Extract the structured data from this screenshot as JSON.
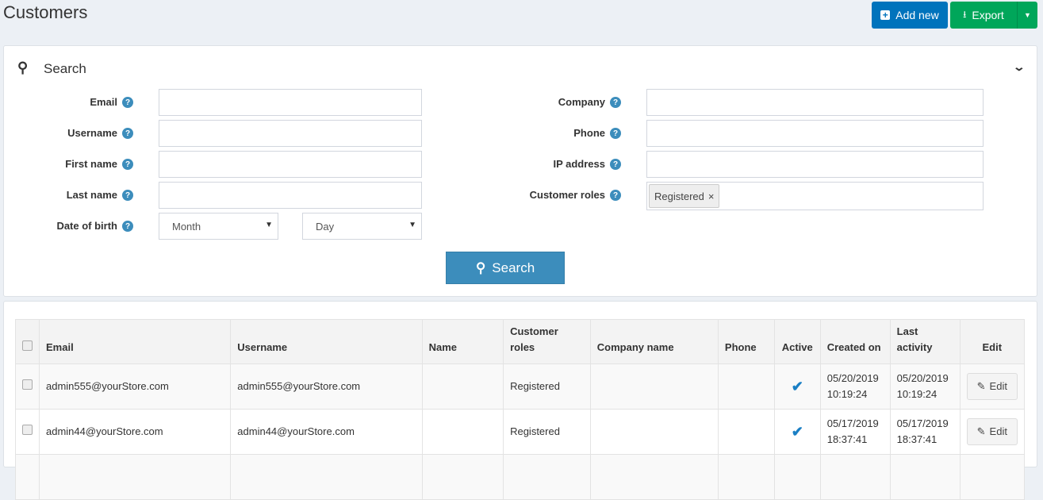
{
  "page": {
    "title": "Customers"
  },
  "toolbar": {
    "add_new": "Add new",
    "export": "Export"
  },
  "search": {
    "title": "Search",
    "button": "Search",
    "left": [
      {
        "label": "Email"
      },
      {
        "label": "Username"
      },
      {
        "label": "First name"
      },
      {
        "label": "Last name"
      },
      {
        "label": "Date of birth"
      }
    ],
    "right": [
      {
        "label": "Company"
      },
      {
        "label": "Phone"
      },
      {
        "label": "IP address"
      },
      {
        "label": "Customer roles"
      }
    ],
    "dob_month": "Month",
    "dob_day": "Day",
    "role_tag": "Registered",
    "role_tag_remove": "×",
    "help": "?"
  },
  "table": {
    "headers": [
      "Email",
      "Username",
      "Name",
      "Customer roles",
      "Company name",
      "Phone",
      "Active",
      "Created on",
      "Last activity",
      "Edit"
    ],
    "rows": [
      {
        "email": "admin555@yourStore.com",
        "username": "admin555@yourStore.com",
        "name": "",
        "roles": "Registered",
        "company": "",
        "phone": "",
        "active": true,
        "created_date": "05/20/2019",
        "created_time": "10:19:24",
        "last_date": "05/20/2019",
        "last_time": "10:19:24",
        "edit": "Edit"
      },
      {
        "email": "admin44@yourStore.com",
        "username": "admin44@yourStore.com",
        "name": "",
        "roles": "Registered",
        "company": "",
        "phone": "",
        "active": true,
        "created_date": "05/17/2019",
        "created_time": "18:37:41",
        "last_date": "05/17/2019",
        "last_time": "18:37:41",
        "edit": "Edit"
      }
    ]
  },
  "colors": {
    "primary": "#0073bc",
    "success": "#00a65a",
    "search_button": "#3c8dbc",
    "check": "#1a7fc4"
  }
}
